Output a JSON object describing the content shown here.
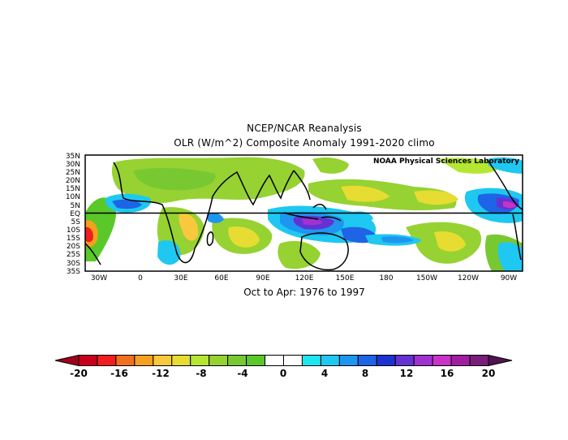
{
  "title_line1": "NCEP/NCAR Reanalysis",
  "title_line2": "OLR (W/m^2) Composite Anomaly 1991-2020 climo",
  "subtitle": "Oct to Apr: 1976 to 1997",
  "credit": "NOAA Physical Sciences Laboratory",
  "lat_labels": [
    "35N",
    "30N",
    "25N",
    "20N",
    "15N",
    "10N",
    "5N",
    "EQ",
    "5S",
    "10S",
    "15S",
    "20S",
    "25S",
    "30S",
    "35S"
  ],
  "lon_labels": [
    "30W",
    "0",
    "30E",
    "60E",
    "90E",
    "120E",
    "150E",
    "180",
    "150W",
    "120W",
    "90W"
  ],
  "colorbar": {
    "labels": [
      "-20",
      "-16",
      "-12",
      "-8",
      "-4",
      "0",
      "4",
      "8",
      "12",
      "16",
      "20"
    ],
    "colors": [
      "#c8001e",
      "#f01e1e",
      "#f0701e",
      "#f5a01e",
      "#fac83c",
      "#e6dc32",
      "#b4e632",
      "#96d232",
      "#78c832",
      "#5ac828",
      "#ffffff",
      "#ffffff",
      "#1ee6f0",
      "#1ec8f0",
      "#1e96f0",
      "#1e64e6",
      "#1e32d2",
      "#6432d2",
      "#a032d2",
      "#c832c8",
      "#a01ea0",
      "#781e78"
    ],
    "left_arrow_color": "#a0001e",
    "right_arrow_color": "#501450"
  }
}
